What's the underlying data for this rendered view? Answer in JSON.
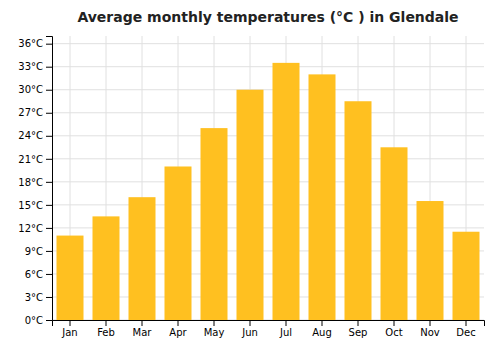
{
  "chart_data": {
    "type": "bar",
    "title": "Average monthly temperatures (°C ) in Glendale",
    "categories": [
      "Jan",
      "Feb",
      "Mar",
      "Apr",
      "May",
      "Jun",
      "Jul",
      "Aug",
      "Sep",
      "Oct",
      "Nov",
      "Dec"
    ],
    "values": [
      11,
      13.5,
      16,
      20,
      25,
      30,
      33.5,
      32,
      28.5,
      22.5,
      15.5,
      11.5
    ],
    "color": "#FFC020",
    "ylim": [
      0,
      37
    ],
    "yticks": [
      {
        "value": 0,
        "label": "0°C"
      },
      {
        "value": 3,
        "label": "3°C"
      },
      {
        "value": 6,
        "label": "6°C"
      },
      {
        "value": 9,
        "label": "9°C"
      },
      {
        "value": 12,
        "label": "12°C"
      },
      {
        "value": 15,
        "label": "15°C"
      },
      {
        "value": 18,
        "label": "18°C"
      },
      {
        "value": 21,
        "label": "21°C"
      },
      {
        "value": 24,
        "label": "24°C"
      },
      {
        "value": 27,
        "label": "27°C"
      },
      {
        "value": 30,
        "label": "30°C"
      },
      {
        "value": 33,
        "label": "33°C"
      },
      {
        "value": 36,
        "label": "36°C"
      }
    ],
    "grid": true
  }
}
